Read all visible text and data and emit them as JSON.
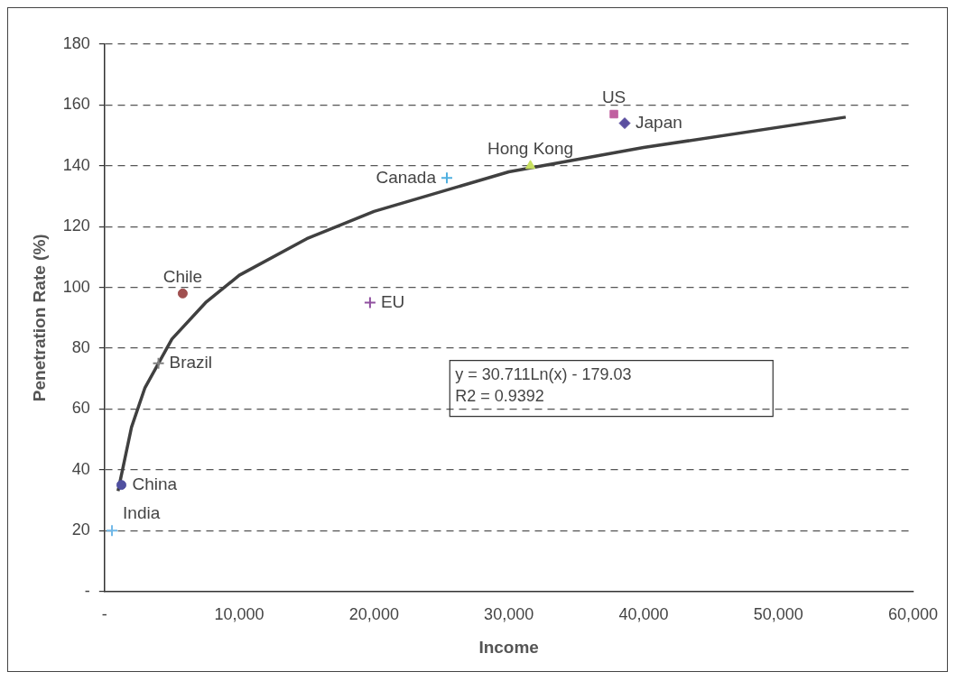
{
  "chart_data": {
    "type": "scatter",
    "xlabel": "Income",
    "ylabel": "Penetration Rate (%)",
    "xlim": [
      0,
      60000
    ],
    "xticks": [
      {
        "value": 0,
        "label": "-"
      },
      {
        "value": 10000,
        "label": "10,000"
      },
      {
        "value": 20000,
        "label": "20,000"
      },
      {
        "value": 30000,
        "label": "30,000"
      },
      {
        "value": 40000,
        "label": "40,000"
      },
      {
        "value": 50000,
        "label": "50,000"
      },
      {
        "value": 60000,
        "label": "60,000"
      }
    ],
    "ylim": [
      0,
      180
    ],
    "yticks": [
      {
        "value": 0,
        "label": "-"
      },
      20,
      40,
      60,
      80,
      100,
      120,
      140,
      160,
      180
    ],
    "grid": "y",
    "legend": false,
    "annotations": [
      "y = 30.711Ln(x) - 179.03",
      "R2 = 0.9392"
    ],
    "series": [
      {
        "type": "line",
        "color": "#404040",
        "marker": "none",
        "line_style": "solid",
        "x": [
          1000,
          2000,
          3000,
          5000,
          7500,
          10000,
          15000,
          20000,
          30000,
          40000,
          55000
        ],
        "values": [
          33,
          54,
          67,
          83,
          95,
          104,
          116,
          125,
          138,
          146,
          156
        ]
      },
      {
        "name": "Japan",
        "color": "#5b4fa0",
        "marker": "diamond",
        "x": [
          38600
        ],
        "values": [
          154
        ]
      },
      {
        "name": "US",
        "color": "#c060a0",
        "marker": "square",
        "x": [
          37800
        ],
        "values": [
          157
        ]
      },
      {
        "name": "Hong Kong",
        "color": "#c8e060",
        "marker": "triangle",
        "x": [
          31600
        ],
        "values": [
          140
        ]
      },
      {
        "name": "Canada",
        "color": "#50b0e0",
        "marker": "cross",
        "x": [
          25400
        ],
        "values": [
          136
        ]
      },
      {
        "name": "Chile",
        "color": "#a05050",
        "marker": "circle",
        "x": [
          5800
        ],
        "values": [
          98
        ]
      },
      {
        "name": "EU",
        "color": "#9050a0",
        "marker": "cross",
        "x": [
          19700
        ],
        "values": [
          95
        ]
      },
      {
        "name": "Brazil",
        "color": "#808080",
        "marker": "cross",
        "x": [
          4000
        ],
        "values": [
          75
        ]
      },
      {
        "name": "China",
        "color": "#5050a0",
        "marker": "circle",
        "x": [
          1250
        ],
        "values": [
          35
        ]
      },
      {
        "name": "India",
        "color": "#70b8e8",
        "marker": "cross",
        "x": [
          550
        ],
        "values": [
          20
        ]
      }
    ]
  }
}
